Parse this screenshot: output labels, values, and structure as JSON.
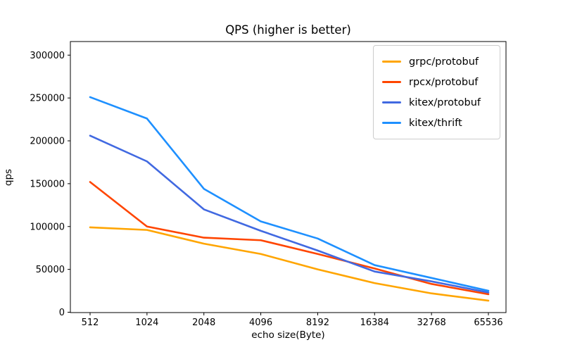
{
  "figure": {
    "title": "QPS (higher is better)"
  },
  "chart_data": {
    "type": "line",
    "title": "QPS (higher is better)",
    "xlabel": "echo size(Byte)",
    "ylabel": "qps",
    "categories": [
      "512",
      "1024",
      "2048",
      "4096",
      "8192",
      "16384",
      "32768",
      "65536"
    ],
    "series": [
      {
        "name": "grpc/protobuf",
        "color": "#ffa500",
        "values": [
          99000,
          96000,
          80000,
          68000,
          50000,
          34000,
          22000,
          13500
        ]
      },
      {
        "name": "rpcx/protobuf",
        "color": "#ff4500",
        "values": [
          152000,
          100000,
          87000,
          84000,
          68000,
          51000,
          33000,
          21000
        ]
      },
      {
        "name": "kitex/protobuf",
        "color": "#4169e1",
        "values": [
          206000,
          176000,
          120000,
          95000,
          72000,
          47500,
          36000,
          23000
        ]
      },
      {
        "name": "kitex/thrift",
        "color": "#1e90ff",
        "values": [
          251000,
          226000,
          144000,
          106000,
          86000,
          55000,
          40000,
          25000
        ]
      }
    ],
    "y_ticks": [
      0,
      50000,
      100000,
      150000,
      200000,
      250000,
      300000
    ],
    "ylim": [
      0,
      316000
    ],
    "xlim_note": "categorical, evenly spaced",
    "legend_position": "upper right",
    "grid": false,
    "line_width": 2.6,
    "axis_color": "#000000"
  }
}
